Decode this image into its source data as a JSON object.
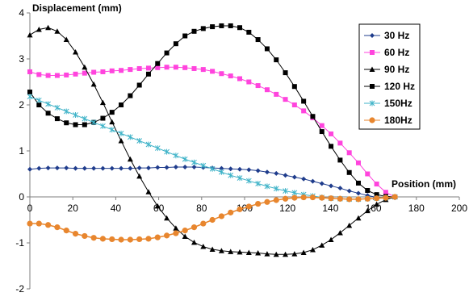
{
  "chart_data": {
    "type": "line",
    "title": "",
    "xlabel": "Position (mm)",
    "ylabel": "Displacement (mm)",
    "xlim": [
      0,
      200
    ],
    "ylim": [
      -2,
      4
    ],
    "x_ticks": [
      "0",
      "20",
      "40",
      "60",
      "80",
      "100",
      "120",
      "140",
      "160",
      "180",
      "200"
    ],
    "y_ticks": [
      "-2",
      "-1",
      "0",
      "1",
      "2",
      "3",
      "4"
    ],
    "grid": false,
    "legend_position": "top-right",
    "x": [
      0,
      4.25,
      8.5,
      12.75,
      17,
      21.25,
      25.5,
      29.75,
      34,
      38.25,
      42.5,
      46.75,
      51,
      55.25,
      59.5,
      63.75,
      68,
      72.25,
      76.5,
      80.75,
      85,
      89.25,
      93.5,
      97.75,
      102,
      106.25,
      110.5,
      114.75,
      119,
      123.25,
      127.5,
      131.75,
      136,
      140.25,
      144.5,
      148.75,
      153,
      157.25,
      161.5,
      165.75,
      170
    ],
    "series": [
      {
        "name": "30 Hz",
        "color": "#1f3c8c",
        "marker": "diamond",
        "values": [
          0.6,
          0.62,
          0.63,
          0.63,
          0.63,
          0.62,
          0.62,
          0.62,
          0.62,
          0.62,
          0.62,
          0.62,
          0.63,
          0.63,
          0.64,
          0.64,
          0.65,
          0.65,
          0.65,
          0.64,
          0.63,
          0.62,
          0.61,
          0.6,
          0.59,
          0.57,
          0.54,
          0.51,
          0.47,
          0.43,
          0.39,
          0.34,
          0.29,
          0.24,
          0.19,
          0.13,
          0.08,
          0.03,
          -0.01,
          -0.03,
          -0.02
        ]
      },
      {
        "name": "60 Hz",
        "color": "#ff44dd",
        "marker": "square",
        "values": [
          2.72,
          2.66,
          2.64,
          2.64,
          2.65,
          2.67,
          2.69,
          2.71,
          2.72,
          2.74,
          2.75,
          2.77,
          2.79,
          2.8,
          2.81,
          2.82,
          2.82,
          2.81,
          2.79,
          2.77,
          2.73,
          2.68,
          2.63,
          2.57,
          2.5,
          2.42,
          2.33,
          2.23,
          2.12,
          2.0,
          1.87,
          1.72,
          1.55,
          1.37,
          1.17,
          0.96,
          0.74,
          0.5,
          0.28,
          0.1,
          0.0
        ]
      },
      {
        "name": "90 Hz",
        "color": "#000000",
        "marker": "triangle",
        "values": [
          3.52,
          3.64,
          3.68,
          3.6,
          3.42,
          3.15,
          2.82,
          2.45,
          2.05,
          1.63,
          1.22,
          0.82,
          0.45,
          0.11,
          -0.2,
          -0.46,
          -0.68,
          -0.86,
          -0.99,
          -1.08,
          -1.14,
          -1.17,
          -1.19,
          -1.2,
          -1.21,
          -1.22,
          -1.24,
          -1.25,
          -1.25,
          -1.24,
          -1.21,
          -1.15,
          -1.05,
          -0.93,
          -0.78,
          -0.62,
          -0.46,
          -0.3,
          -0.16,
          -0.06,
          0.0
        ]
      },
      {
        "name": "120 Hz",
        "color": "#000000",
        "marker": "square-filled",
        "values": [
          2.28,
          2.0,
          1.82,
          1.7,
          1.61,
          1.57,
          1.57,
          1.62,
          1.71,
          1.84,
          2.0,
          2.2,
          2.43,
          2.67,
          2.9,
          3.13,
          3.33,
          3.5,
          3.6,
          3.66,
          3.7,
          3.72,
          3.72,
          3.68,
          3.58,
          3.42,
          3.22,
          2.98,
          2.7,
          2.4,
          2.08,
          1.75,
          1.42,
          1.1,
          0.8,
          0.53,
          0.3,
          0.14,
          0.05,
          0.01,
          0.0
        ]
      },
      {
        "name": "150Hz",
        "color": "#3fb3c8",
        "marker": "star",
        "values": [
          2.18,
          2.1,
          2.02,
          1.94,
          1.86,
          1.78,
          1.7,
          1.62,
          1.54,
          1.46,
          1.38,
          1.3,
          1.22,
          1.14,
          1.06,
          0.98,
          0.9,
          0.82,
          0.75,
          0.68,
          0.61,
          0.54,
          0.47,
          0.41,
          0.35,
          0.29,
          0.23,
          0.18,
          0.13,
          0.09,
          0.05,
          0.02,
          -0.01,
          -0.03,
          -0.04,
          -0.05,
          -0.05,
          -0.04,
          -0.03,
          -0.02,
          0.0
        ]
      },
      {
        "name": "180Hz",
        "color": "#e8862e",
        "marker": "circle",
        "values": [
          -0.58,
          -0.58,
          -0.61,
          -0.66,
          -0.73,
          -0.8,
          -0.85,
          -0.89,
          -0.91,
          -0.92,
          -0.93,
          -0.93,
          -0.92,
          -0.91,
          -0.88,
          -0.84,
          -0.79,
          -0.73,
          -0.66,
          -0.58,
          -0.5,
          -0.42,
          -0.34,
          -0.27,
          -0.21,
          -0.15,
          -0.11,
          -0.07,
          -0.04,
          -0.02,
          -0.01,
          -0.01,
          -0.02,
          -0.03,
          -0.04,
          -0.05,
          -0.05,
          -0.04,
          -0.03,
          -0.02,
          0.0
        ]
      }
    ]
  }
}
